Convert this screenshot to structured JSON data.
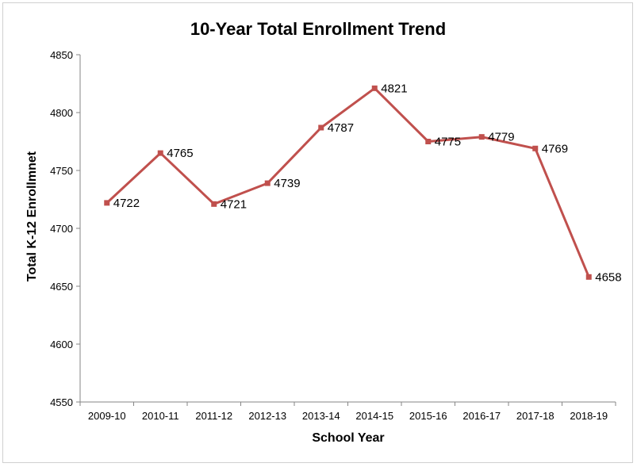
{
  "chart_data": {
    "type": "line",
    "title": "10-Year Total Enrollment Trend",
    "xlabel": "School Year",
    "ylabel": "Total K-12 Enrollmnet",
    "categories": [
      "2009-10",
      "2010-11",
      "2011-12",
      "2012-13",
      "2013-14",
      "2014-15",
      "2015-16",
      "2016-17",
      "2017-18",
      "2018-19"
    ],
    "series": [
      {
        "values": [
          4722,
          4765,
          4721,
          4739,
          4787,
          4821,
          4775,
          4779,
          4769,
          4658
        ]
      }
    ],
    "data_labels": [
      "4722",
      "4765",
      "4721",
      "4739",
      "4787",
      "4821",
      "4775",
      "4779",
      "4769",
      "4658"
    ],
    "ylim": [
      4550,
      4850
    ],
    "yticks": [
      "4550",
      "4600",
      "4650",
      "4700",
      "4750",
      "4800",
      "4850"
    ],
    "grid": false,
    "legend": "none",
    "colors": {
      "line": "#c0504d",
      "axis": "#868686"
    }
  }
}
